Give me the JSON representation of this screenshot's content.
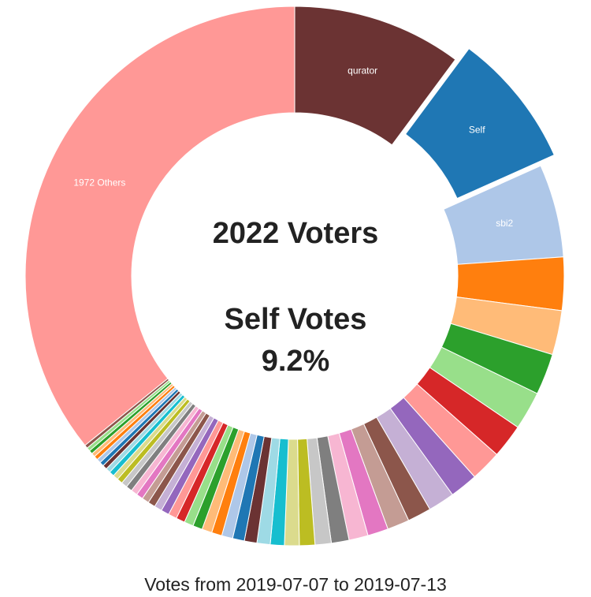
{
  "chart_data": {
    "type": "pie",
    "style": "donut",
    "center": {
      "voters": "2022 Voters",
      "self_votes_label": "Self Votes",
      "self_votes_value": "9.2%"
    },
    "footer": "Votes from 2019-07-07 to 2019-07-13",
    "exploded_slice": "Self",
    "slices": [
      {
        "label": "qurator",
        "value": 11.5,
        "color": "#6b3333",
        "show_label": true
      },
      {
        "label": "Self",
        "value": 9.2,
        "color": "#1f77b4",
        "show_label": true
      },
      {
        "label": "sbi2",
        "value": 6.3,
        "color": "#aec7e8",
        "show_label": true
      },
      {
        "label": "",
        "value": 3.6,
        "color": "#ff7f0e"
      },
      {
        "label": "",
        "value": 3.0,
        "color": "#ffbb78"
      },
      {
        "label": "",
        "value": 2.8,
        "color": "#2ca02c"
      },
      {
        "label": "",
        "value": 2.6,
        "color": "#98df8a"
      },
      {
        "label": "",
        "value": 2.3,
        "color": "#d62728"
      },
      {
        "label": "",
        "value": 2.1,
        "color": "#ff9896"
      },
      {
        "label": "",
        "value": 1.9,
        "color": "#9467bd"
      },
      {
        "label": "",
        "value": 1.8,
        "color": "#c5b0d5"
      },
      {
        "label": "",
        "value": 1.6,
        "color": "#8c564b"
      },
      {
        "label": "",
        "value": 1.5,
        "color": "#c49c94"
      },
      {
        "label": "",
        "value": 1.4,
        "color": "#e377c2"
      },
      {
        "label": "",
        "value": 1.3,
        "color": "#f7b6d2"
      },
      {
        "label": "",
        "value": 1.2,
        "color": "#7f7f7f"
      },
      {
        "label": "",
        "value": 1.1,
        "color": "#c7c7c7"
      },
      {
        "label": "",
        "value": 1.05,
        "color": "#bcbd22"
      },
      {
        "label": "",
        "value": 1.0,
        "color": "#dbdb8d"
      },
      {
        "label": "",
        "value": 0.95,
        "color": "#17becf"
      },
      {
        "label": "",
        "value": 0.9,
        "color": "#9edae5"
      },
      {
        "label": "",
        "value": 0.85,
        "color": "#6b3333"
      },
      {
        "label": "",
        "value": 0.8,
        "color": "#1f77b4"
      },
      {
        "label": "",
        "value": 0.75,
        "color": "#aec7e8"
      },
      {
        "label": "",
        "value": 0.7,
        "color": "#ff7f0e"
      },
      {
        "label": "",
        "value": 0.68,
        "color": "#ffbb78"
      },
      {
        "label": "",
        "value": 0.65,
        "color": "#2ca02c"
      },
      {
        "label": "",
        "value": 0.62,
        "color": "#98df8a"
      },
      {
        "label": "",
        "value": 0.6,
        "color": "#d62728"
      },
      {
        "label": "",
        "value": 0.58,
        "color": "#ff9896"
      },
      {
        "label": "",
        "value": 0.55,
        "color": "#9467bd"
      },
      {
        "label": "",
        "value": 0.52,
        "color": "#c5b0d5"
      },
      {
        "label": "",
        "value": 0.5,
        "color": "#8c564b"
      },
      {
        "label": "",
        "value": 0.48,
        "color": "#c49c94"
      },
      {
        "label": "",
        "value": 0.46,
        "color": "#e377c2"
      },
      {
        "label": "",
        "value": 0.44,
        "color": "#f7b6d2"
      },
      {
        "label": "",
        "value": 0.42,
        "color": "#7f7f7f"
      },
      {
        "label": "",
        "value": 0.4,
        "color": "#c7c7c7"
      },
      {
        "label": "",
        "value": 0.38,
        "color": "#bcbd22"
      },
      {
        "label": "",
        "value": 0.36,
        "color": "#dbdb8d"
      },
      {
        "label": "",
        "value": 0.34,
        "color": "#17becf"
      },
      {
        "label": "",
        "value": 0.32,
        "color": "#9edae5"
      },
      {
        "label": "",
        "value": 0.3,
        "color": "#6b3333"
      },
      {
        "label": "",
        "value": 0.29,
        "color": "#1f77b4"
      },
      {
        "label": "",
        "value": 0.28,
        "color": "#aec7e8"
      },
      {
        "label": "",
        "value": 0.27,
        "color": "#ff7f0e"
      },
      {
        "label": "",
        "value": 0.26,
        "color": "#ffbb78"
      },
      {
        "label": "",
        "value": 0.25,
        "color": "#2ca02c"
      },
      {
        "label": "",
        "value": 0.24,
        "color": "#98df8a"
      },
      {
        "label": "",
        "value": 0.23,
        "color": "#8c564b"
      },
      {
        "label": "1972 Others",
        "value": 40.5,
        "color": "#ff9896",
        "show_label": true
      }
    ]
  }
}
